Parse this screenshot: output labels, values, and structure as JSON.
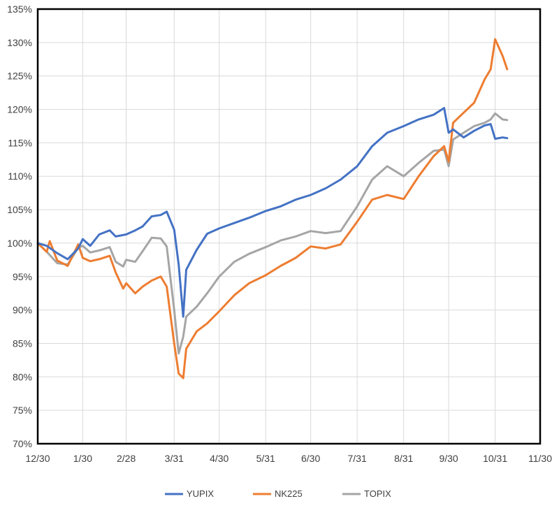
{
  "chart_data": {
    "type": "line",
    "title": "",
    "xlabel": "",
    "ylabel": "",
    "xlim": [
      "12/30",
      "11/30"
    ],
    "ylim": [
      70,
      135
    ],
    "y_ticks": [
      "70%",
      "75%",
      "80%",
      "85%",
      "90%",
      "95%",
      "100%",
      "105%",
      "110%",
      "115%",
      "120%",
      "125%",
      "130%",
      "135%"
    ],
    "x_ticks": [
      "12/30",
      "1/30",
      "2/28",
      "3/31",
      "4/30",
      "5/31",
      "6/30",
      "7/31",
      "8/31",
      "9/30",
      "10/31",
      "11/30"
    ],
    "grid": "horizontal and vertical",
    "legend": "bottom",
    "colors": {
      "YUPIX": "#4472c4",
      "NK225": "#ed7d31",
      "TOPIX": "#a5a5a5",
      "grid": "#d9d9d9",
      "frame": "#000000"
    },
    "series": [
      {
        "name": "YUPIX",
        "points": [
          [
            "12/30",
            100
          ],
          [
            "1/6",
            99.6
          ],
          [
            "1/13",
            98.5
          ],
          [
            "1/20",
            97.6
          ],
          [
            "1/27",
            99.2
          ],
          [
            "1/30",
            100.6
          ],
          [
            "2/4",
            99.6
          ],
          [
            "2/10",
            101.3
          ],
          [
            "2/17",
            101.9
          ],
          [
            "2/21",
            101.0
          ],
          [
            "2/28",
            101.3
          ],
          [
            "3/5",
            101.9
          ],
          [
            "3/10",
            102.5
          ],
          [
            "3/16",
            104.0
          ],
          [
            "3/22",
            104.2
          ],
          [
            "3/26",
            104.7
          ],
          [
            "3/31",
            102.0
          ],
          [
            "4/3",
            96.8
          ],
          [
            "4/6",
            89.0
          ],
          [
            "4/8",
            96.0
          ],
          [
            "4/15",
            99.0
          ],
          [
            "4/22",
            101.4
          ],
          [
            "4/30",
            102.2
          ],
          [
            "5/10",
            103.0
          ],
          [
            "5/20",
            103.8
          ],
          [
            "5/31",
            104.8
          ],
          [
            "6/10",
            105.5
          ],
          [
            "6/20",
            106.5
          ],
          [
            "6/30",
            107.2
          ],
          [
            "7/10",
            108.2
          ],
          [
            "7/20",
            109.5
          ],
          [
            "7/31",
            111.5
          ],
          [
            "8/10",
            114.5
          ],
          [
            "8/20",
            116.5
          ],
          [
            "8/31",
            117.5
          ],
          [
            "9/10",
            118.5
          ],
          [
            "9/20",
            119.2
          ],
          [
            "9/27",
            120.2
          ],
          [
            "9/30",
            116.5
          ],
          [
            "10/3",
            117.0
          ],
          [
            "10/10",
            115.8
          ],
          [
            "10/17",
            116.8
          ],
          [
            "10/24",
            117.6
          ],
          [
            "10/28",
            117.8
          ],
          [
            "10/31",
            115.6
          ],
          [
            "11/5",
            115.8
          ],
          [
            "11/8",
            115.7
          ]
        ]
      },
      {
        "name": "NK225",
        "points": [
          [
            "12/30",
            100
          ],
          [
            "1/6",
            98.7
          ],
          [
            "1/8",
            100.3
          ],
          [
            "1/13",
            97.4
          ],
          [
            "1/20",
            96.6
          ],
          [
            "1/27",
            99.8
          ],
          [
            "1/30",
            97.8
          ],
          [
            "2/4",
            97.3
          ],
          [
            "2/10",
            97.6
          ],
          [
            "2/17",
            98.1
          ],
          [
            "2/21",
            95.6
          ],
          [
            "2/26",
            93.2
          ],
          [
            "2/28",
            94.0
          ],
          [
            "3/5",
            92.5
          ],
          [
            "3/10",
            93.5
          ],
          [
            "3/16",
            94.4
          ],
          [
            "3/22",
            95.0
          ],
          [
            "3/26",
            93.5
          ],
          [
            "3/31",
            85.0
          ],
          [
            "4/3",
            80.5
          ],
          [
            "4/6",
            79.8
          ],
          [
            "4/8",
            84.2
          ],
          [
            "4/15",
            86.8
          ],
          [
            "4/22",
            88.0
          ],
          [
            "4/30",
            89.8
          ],
          [
            "5/10",
            92.2
          ],
          [
            "5/20",
            94.0
          ],
          [
            "5/31",
            95.2
          ],
          [
            "6/10",
            96.6
          ],
          [
            "6/20",
            97.8
          ],
          [
            "6/30",
            99.5
          ],
          [
            "7/10",
            99.2
          ],
          [
            "7/20",
            99.8
          ],
          [
            "7/31",
            103.2
          ],
          [
            "8/10",
            106.5
          ],
          [
            "8/20",
            107.2
          ],
          [
            "8/31",
            106.6
          ],
          [
            "9/10",
            110.0
          ],
          [
            "9/20",
            113.0
          ],
          [
            "9/27",
            114.5
          ],
          [
            "9/30",
            112.2
          ],
          [
            "10/3",
            118.0
          ],
          [
            "10/10",
            119.5
          ],
          [
            "10/17",
            121.0
          ],
          [
            "10/24",
            124.5
          ],
          [
            "10/28",
            126.0
          ],
          [
            "10/31",
            130.5
          ],
          [
            "11/5",
            128.0
          ],
          [
            "11/8",
            126.0
          ]
        ]
      },
      {
        "name": "TOPIX",
        "points": [
          [
            "12/30",
            100
          ],
          [
            "1/6",
            98.7
          ],
          [
            "1/13",
            97.0
          ],
          [
            "1/20",
            96.8
          ],
          [
            "1/27",
            99.3
          ],
          [
            "1/30",
            99.6
          ],
          [
            "2/4",
            98.6
          ],
          [
            "2/10",
            98.9
          ],
          [
            "2/17",
            99.4
          ],
          [
            "2/21",
            97.2
          ],
          [
            "2/26",
            96.5
          ],
          [
            "2/28",
            97.5
          ],
          [
            "3/5",
            97.2
          ],
          [
            "3/10",
            98.8
          ],
          [
            "3/16",
            100.8
          ],
          [
            "3/22",
            100.7
          ],
          [
            "3/26",
            99.5
          ],
          [
            "3/31",
            90.0
          ],
          [
            "4/3",
            83.5
          ],
          [
            "4/6",
            86.0
          ],
          [
            "4/8",
            89.0
          ],
          [
            "4/15",
            90.5
          ],
          [
            "4/22",
            92.5
          ],
          [
            "4/30",
            95.0
          ],
          [
            "5/10",
            97.2
          ],
          [
            "5/20",
            98.4
          ],
          [
            "5/31",
            99.4
          ],
          [
            "6/10",
            100.4
          ],
          [
            "6/20",
            101.0
          ],
          [
            "6/30",
            101.8
          ],
          [
            "7/10",
            101.5
          ],
          [
            "7/20",
            101.8
          ],
          [
            "7/31",
            105.5
          ],
          [
            "8/10",
            109.5
          ],
          [
            "8/20",
            111.5
          ],
          [
            "8/31",
            110.0
          ],
          [
            "9/10",
            112.0
          ],
          [
            "9/20",
            113.8
          ],
          [
            "9/27",
            114.0
          ],
          [
            "9/30",
            111.5
          ],
          [
            "10/3",
            115.5
          ],
          [
            "10/10",
            116.5
          ],
          [
            "10/17",
            117.5
          ],
          [
            "10/24",
            118.0
          ],
          [
            "10/28",
            118.5
          ],
          [
            "10/31",
            119.4
          ],
          [
            "11/5",
            118.5
          ],
          [
            "11/8",
            118.4
          ]
        ]
      }
    ]
  }
}
